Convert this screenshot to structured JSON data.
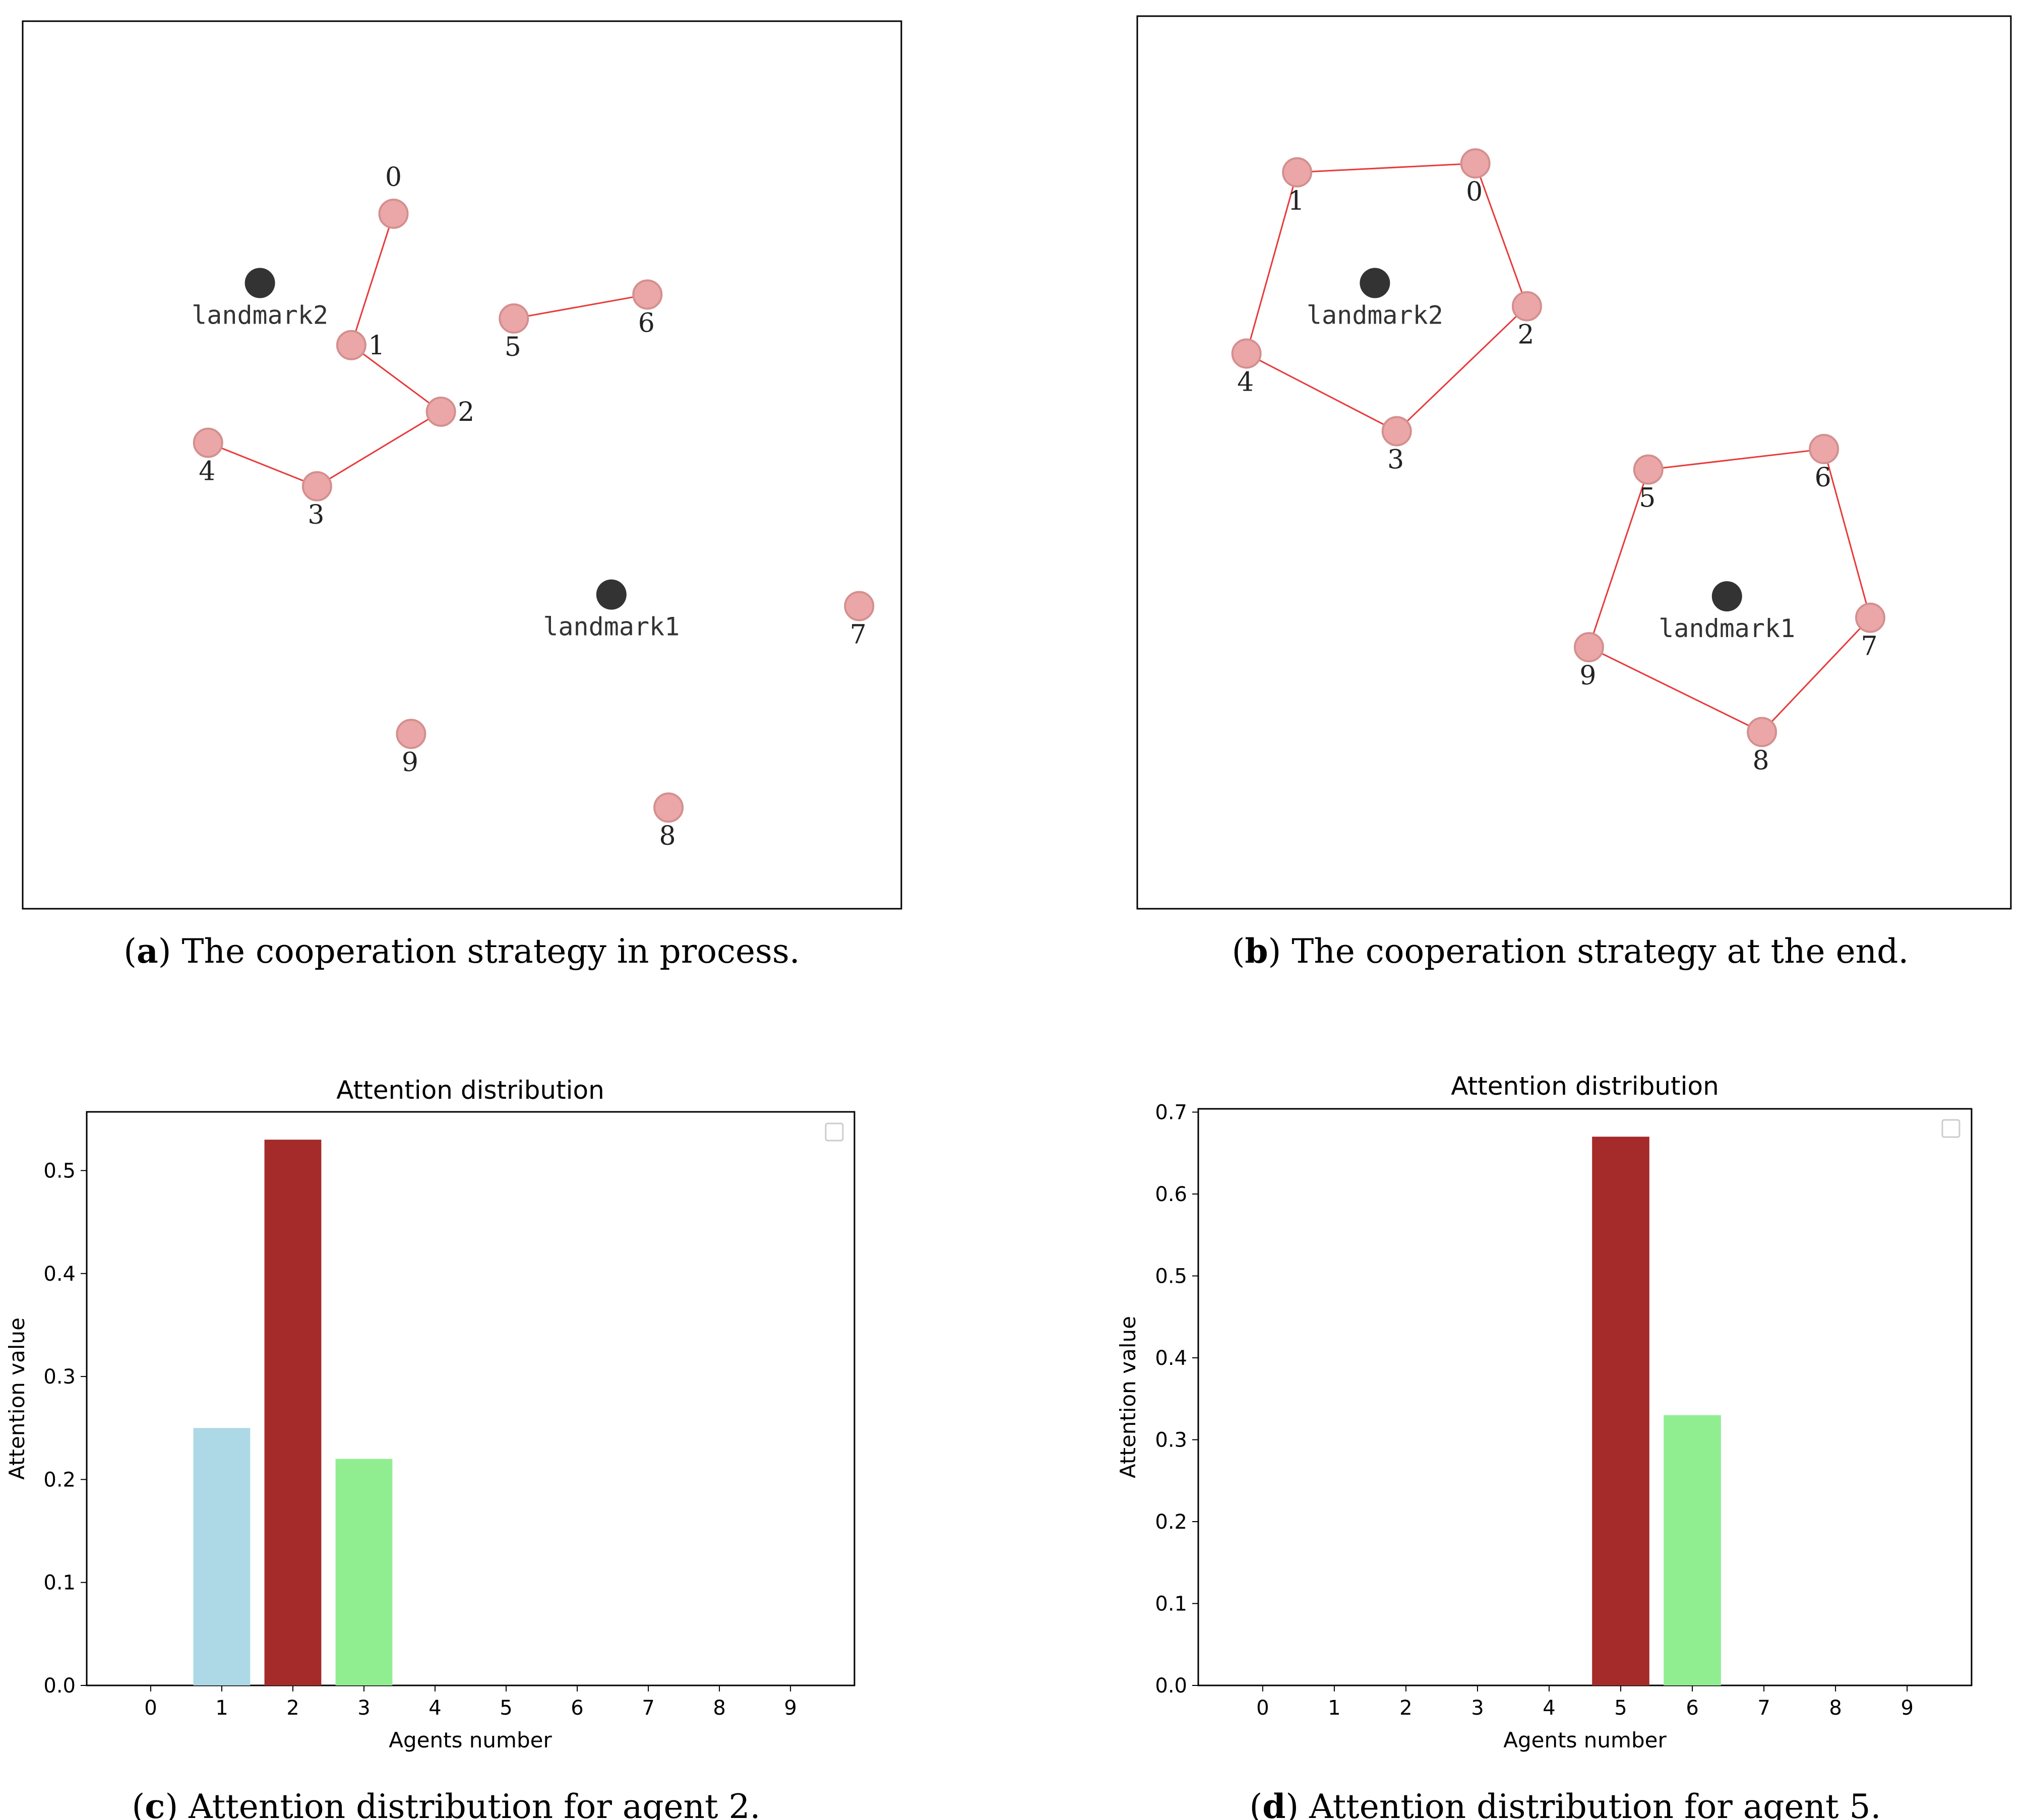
{
  "chart_data": [
    {
      "id": "a",
      "type": "scatter",
      "caption_letter": "a",
      "caption_text": "The cooperation strategy in process.",
      "domain": {
        "x": [
          0,
          1000
        ],
        "y": [
          0,
          1000
        ]
      },
      "landmarks": [
        {
          "label": "landmark2",
          "x": 270,
          "y": 705
        },
        {
          "label": "landmark1",
          "x": 670,
          "y": 354
        }
      ],
      "agents": [
        {
          "label": "0",
          "x": 422,
          "y": 783
        },
        {
          "label": "1",
          "x": 374,
          "y": 635
        },
        {
          "label": "2",
          "x": 476,
          "y": 560
        },
        {
          "label": "3",
          "x": 335,
          "y": 476
        },
        {
          "label": "4",
          "x": 211,
          "y": 525
        },
        {
          "label": "5",
          "x": 559,
          "y": 665
        },
        {
          "label": "6",
          "x": 711,
          "y": 692
        },
        {
          "label": "7",
          "x": 952,
          "y": 341
        },
        {
          "label": "8",
          "x": 735,
          "y": 114
        },
        {
          "label": "9",
          "x": 442,
          "y": 197
        }
      ],
      "links": [
        [
          "0",
          "1"
        ],
        [
          "1",
          "2"
        ],
        [
          "2",
          "3"
        ],
        [
          "3",
          "4"
        ],
        [
          "5",
          "6"
        ]
      ]
    },
    {
      "id": "b",
      "type": "scatter",
      "caption_letter": "b",
      "caption_text": "The cooperation strategy at the end.",
      "domain": {
        "x": [
          0,
          1000
        ],
        "y": [
          0,
          1000
        ]
      },
      "landmarks": [
        {
          "label": "landmark2",
          "x": 272,
          "y": 701
        },
        {
          "label": "landmark1",
          "x": 675,
          "y": 350
        }
      ],
      "agents": [
        {
          "label": "0",
          "x": 387,
          "y": 835
        },
        {
          "label": "1",
          "x": 183,
          "y": 825
        },
        {
          "label": "2",
          "x": 446,
          "y": 675
        },
        {
          "label": "3",
          "x": 297,
          "y": 535
        },
        {
          "label": "4",
          "x": 125,
          "y": 622
        },
        {
          "label": "5",
          "x": 585,
          "y": 492
        },
        {
          "label": "6",
          "x": 786,
          "y": 515
        },
        {
          "label": "7",
          "x": 839,
          "y": 326
        },
        {
          "label": "8",
          "x": 715,
          "y": 198
        },
        {
          "label": "9",
          "x": 517,
          "y": 293
        }
      ],
      "links": [
        [
          "0",
          "1"
        ],
        [
          "1",
          "4"
        ],
        [
          "4",
          "3"
        ],
        [
          "3",
          "2"
        ],
        [
          "2",
          "0"
        ],
        [
          "5",
          "6"
        ],
        [
          "6",
          "7"
        ],
        [
          "7",
          "8"
        ],
        [
          "8",
          "9"
        ],
        [
          "9",
          "5"
        ]
      ]
    },
    {
      "id": "c",
      "type": "bar",
      "title": "Attention distribution",
      "xlabel": "Agents number",
      "ylabel": "Attention value",
      "categories": [
        "0",
        "1",
        "2",
        "3",
        "4",
        "5",
        "6",
        "7",
        "8",
        "9"
      ],
      "values": [
        0,
        0.25,
        0.53,
        0.22,
        0,
        0,
        0,
        0,
        0,
        0
      ],
      "colors": [
        "#add8e6",
        "#add8e6",
        "#a52a2a",
        "#90ee90",
        "#add8e6",
        "#add8e6",
        "#add8e6",
        "#add8e6",
        "#add8e6",
        "#add8e6"
      ],
      "ylim": [
        0,
        0.557
      ],
      "yticks": [
        0.0,
        0.1,
        0.2,
        0.3,
        0.4,
        0.5
      ],
      "legend": "top-right (empty)",
      "caption_letter": "c",
      "caption_text": "Attention distribution for agent 2."
    },
    {
      "id": "d",
      "type": "bar",
      "title": "Attention distribution",
      "xlabel": "Agents number",
      "ylabel": "Attention value",
      "categories": [
        "0",
        "1",
        "2",
        "3",
        "4",
        "5",
        "6",
        "7",
        "8",
        "9"
      ],
      "values": [
        0,
        0,
        0,
        0,
        0,
        0.67,
        0.33,
        0,
        0,
        0
      ],
      "colors": [
        "#add8e6",
        "#add8e6",
        "#add8e6",
        "#add8e6",
        "#add8e6",
        "#a52a2a",
        "#90ee90",
        "#add8e6",
        "#add8e6",
        "#add8e6"
      ],
      "ylim": [
        0,
        0.704
      ],
      "yticks": [
        0.0,
        0.1,
        0.2,
        0.3,
        0.4,
        0.5,
        0.6,
        0.7
      ],
      "legend": "top-right (empty)",
      "caption_letter": "d",
      "caption_text": "Attention distribution for agent 5."
    }
  ],
  "colors": {
    "agent_fill": "#eba7a7",
    "agent_stroke": "#d48f8f",
    "link": "#e83a3a",
    "landmark": "#333333",
    "frame": "#000000"
  }
}
